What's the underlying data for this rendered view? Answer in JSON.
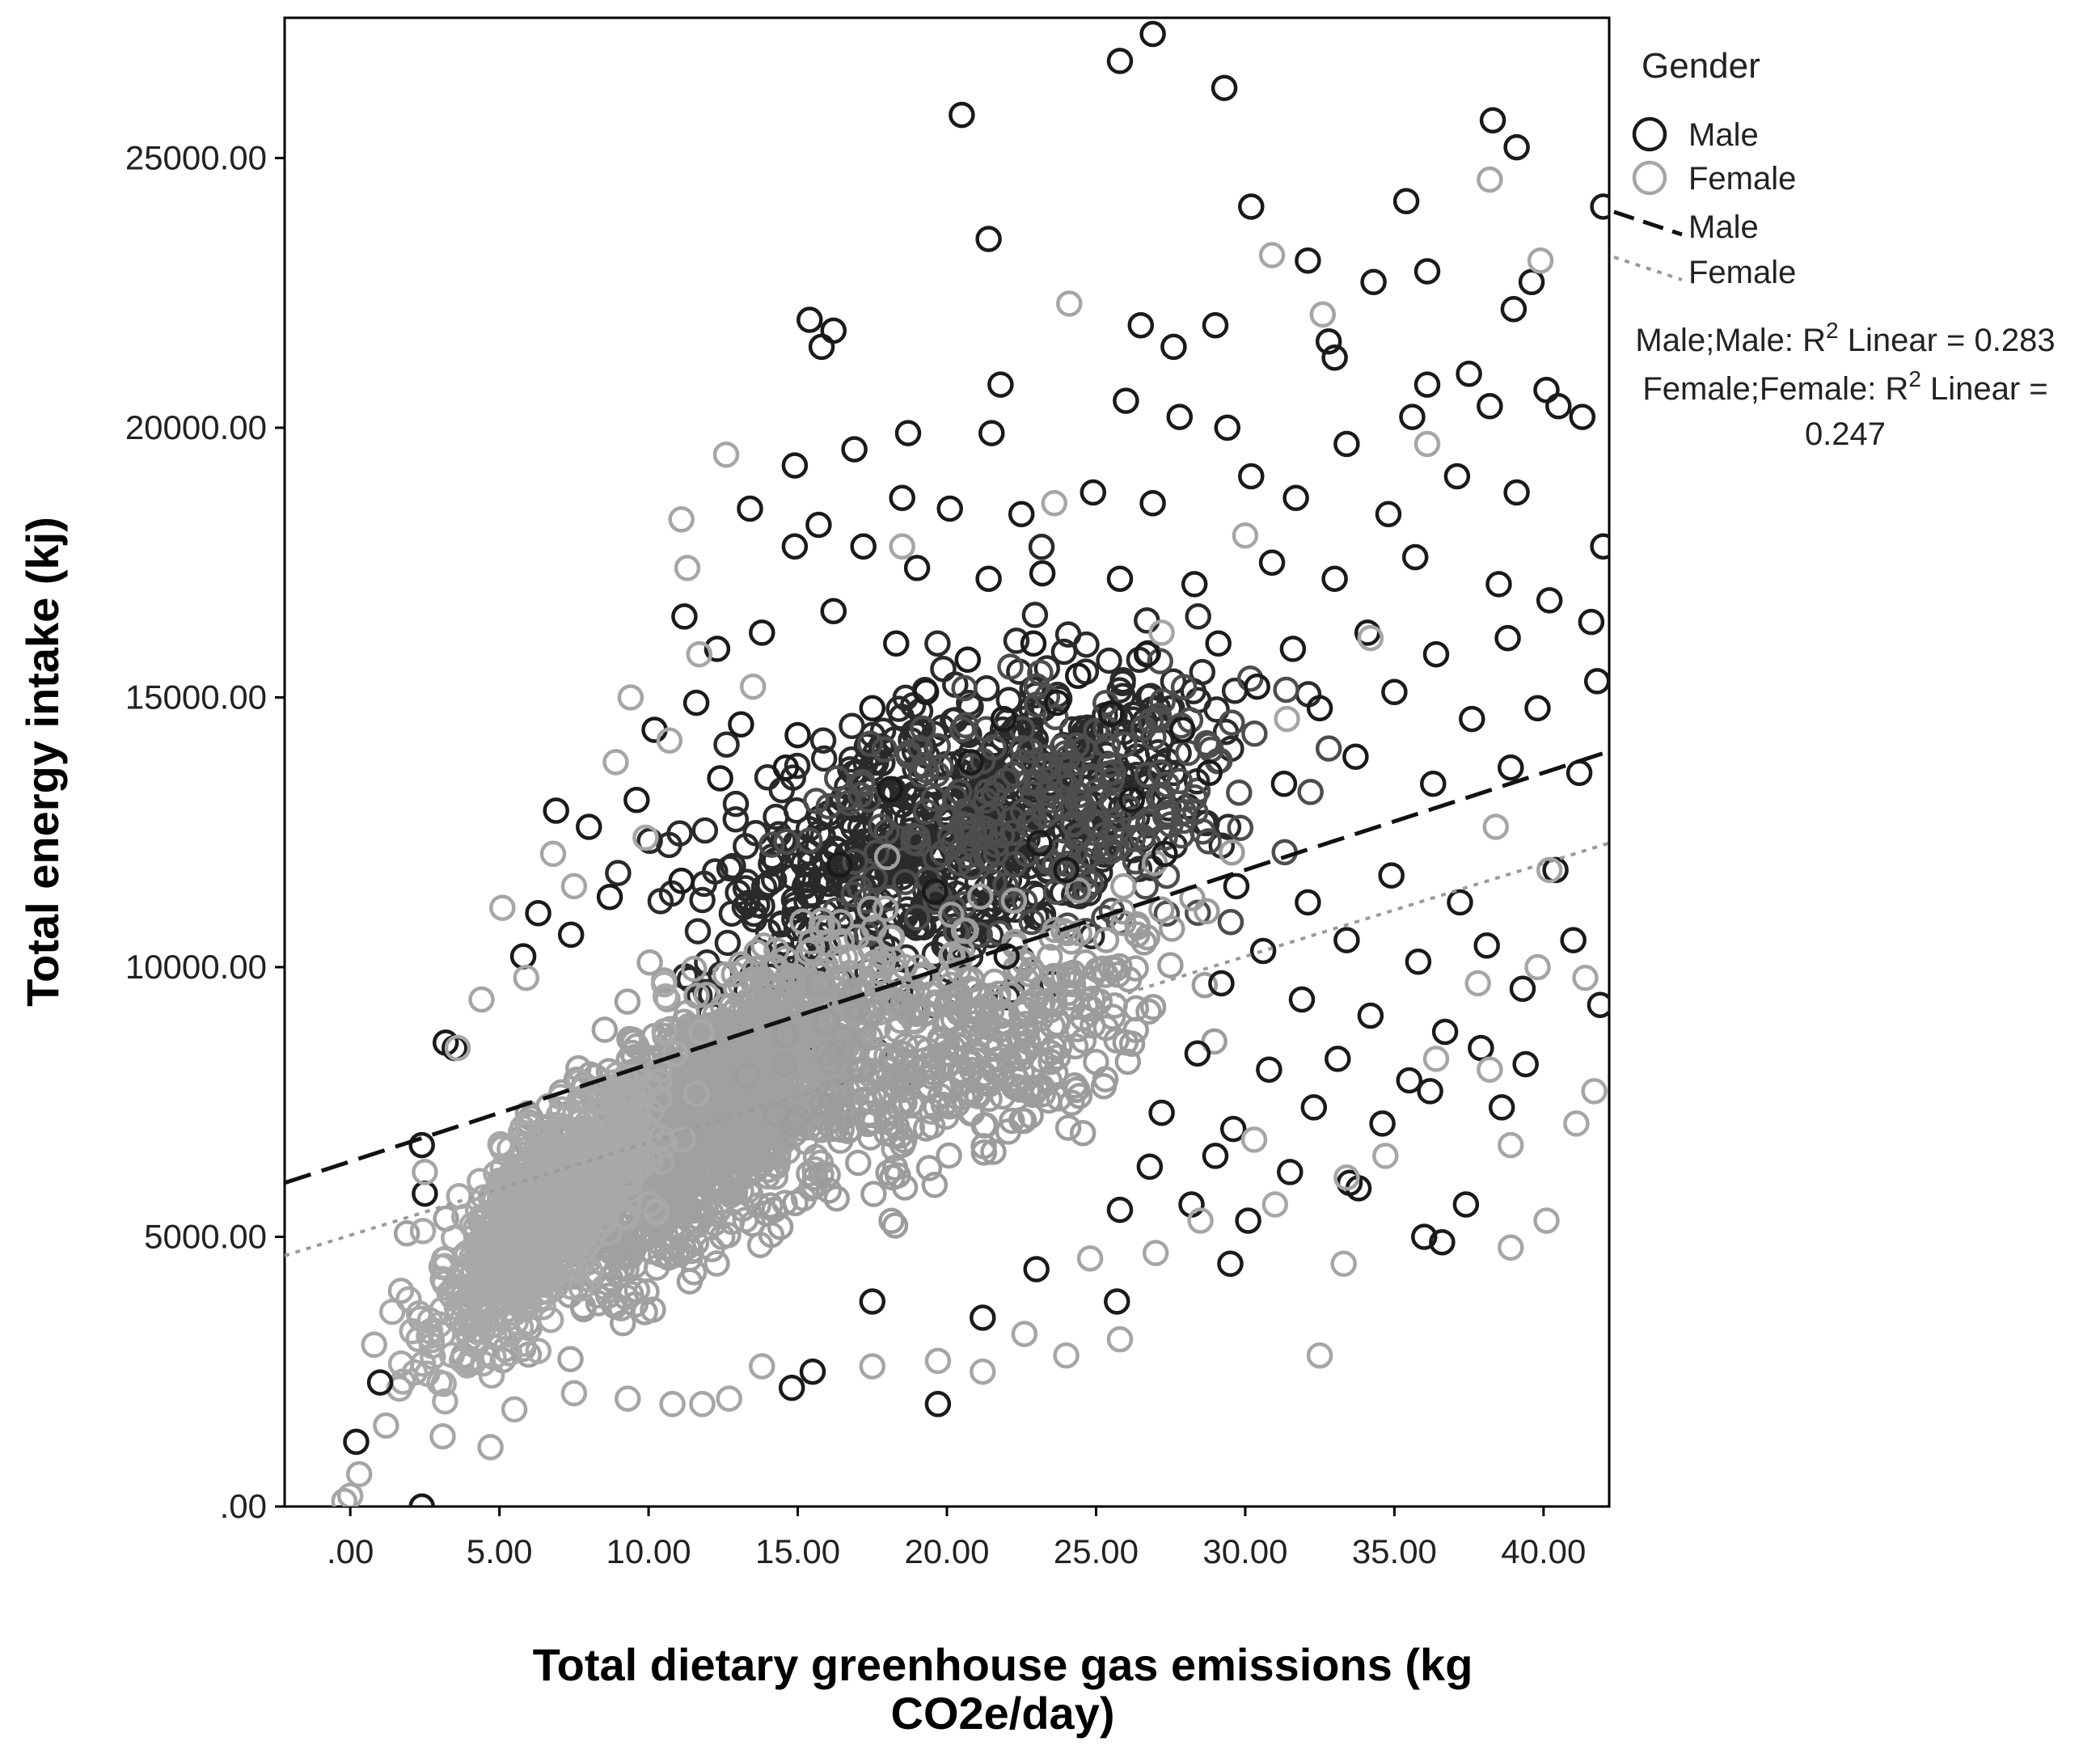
{
  "chart_data": {
    "type": "scatter",
    "title": "",
    "xlabel_line1": "Total dietary greenhouse gas emissions (kg",
    "xlabel_line2": "CO2e/day)",
    "ylabel": "Total energy intake (kj)",
    "xlim": [
      -2.2,
      42.2
    ],
    "ylim": [
      0,
      27600
    ],
    "x_ticks": [
      0,
      5,
      10,
      15,
      20,
      25,
      30,
      35,
      40
    ],
    "x_tick_labels": [
      ".00",
      "5.00",
      "10.00",
      "15.00",
      "20.00",
      "25.00",
      "30.00",
      "35.00",
      "40.00"
    ],
    "y_ticks": [
      0,
      5000,
      10000,
      15000,
      20000,
      25000
    ],
    "y_tick_labels": [
      ".00",
      "5000.00",
      "10000.00",
      "15000.00",
      "20000.00",
      "25000.00"
    ],
    "legend": {
      "title": "Gender",
      "position": "right",
      "entries": [
        {
          "label": "Male",
          "kind": "marker"
        },
        {
          "label": "Female",
          "kind": "marker"
        },
        {
          "label": "Male",
          "kind": "dashed-line"
        },
        {
          "label": "Female",
          "kind": "dotted-line"
        }
      ]
    },
    "fit_annotations": {
      "male_prefix": "Male;Male: R",
      "male_suffix": " Linear = 0.283",
      "female_prefix": "Female;Female: R",
      "female_suffix": " Linear =",
      "female_value": "0.247",
      "superscript": "2"
    },
    "series": [
      {
        "name": "Male",
        "color": "#1a1a1a",
        "fit": {
          "type": "linear",
          "x0": -2.2,
          "y0": 6000,
          "x1": 42.2,
          "y1": 14000,
          "r2": 0.283
        },
        "points": [
          [
            26.9,
            27300
          ],
          [
            25.8,
            26800
          ],
          [
            29.3,
            26300
          ],
          [
            20.5,
            25800
          ],
          [
            38.3,
            25700
          ],
          [
            39.1,
            25200
          ],
          [
            21.4,
            23500
          ],
          [
            35.4,
            24200
          ],
          [
            30.2,
            24100
          ],
          [
            42.0,
            24100
          ],
          [
            34.3,
            22700
          ],
          [
            36.1,
            22900
          ],
          [
            39.6,
            22700
          ],
          [
            39.0,
            22200
          ],
          [
            32.1,
            23100
          ],
          [
            15.4,
            22000
          ],
          [
            15.8,
            21500
          ],
          [
            16.2,
            21800
          ],
          [
            26.5,
            21900
          ],
          [
            27.6,
            21500
          ],
          [
            29.0,
            21900
          ],
          [
            32.8,
            21600
          ],
          [
            33.0,
            21300
          ],
          [
            37.5,
            21000
          ],
          [
            21.8,
            20800
          ],
          [
            40.1,
            20700
          ],
          [
            40.5,
            20400
          ],
          [
            41.3,
            20200
          ],
          [
            36.1,
            20800
          ],
          [
            35.6,
            20200
          ],
          [
            18.7,
            19900
          ],
          [
            21.5,
            19900
          ],
          [
            16.9,
            19600
          ],
          [
            14.9,
            19300
          ],
          [
            26.0,
            20500
          ],
          [
            27.8,
            20200
          ],
          [
            29.4,
            20000
          ],
          [
            33.4,
            19700
          ],
          [
            38.2,
            20400
          ],
          [
            13.4,
            18500
          ],
          [
            15.7,
            18200
          ],
          [
            18.5,
            18700
          ],
          [
            20.1,
            18500
          ],
          [
            22.5,
            18400
          ],
          [
            24.9,
            18800
          ],
          [
            26.9,
            18600
          ],
          [
            30.2,
            19100
          ],
          [
            31.7,
            18700
          ],
          [
            34.8,
            18400
          ],
          [
            37.1,
            19100
          ],
          [
            39.1,
            18800
          ],
          [
            42.0,
            17800
          ],
          [
            14.9,
            17800
          ],
          [
            17.2,
            17800
          ],
          [
            19.0,
            17400
          ],
          [
            21.4,
            17200
          ],
          [
            23.2,
            17300
          ],
          [
            25.8,
            17200
          ],
          [
            28.3,
            17100
          ],
          [
            30.9,
            17500
          ],
          [
            33.0,
            17200
          ],
          [
            35.7,
            17600
          ],
          [
            38.5,
            17100
          ],
          [
            40.2,
            16800
          ],
          [
            11.2,
            16500
          ],
          [
            12.3,
            15900
          ],
          [
            13.8,
            16200
          ],
          [
            16.2,
            16600
          ],
          [
            18.3,
            16000
          ],
          [
            20.7,
            15700
          ],
          [
            22.9,
            16000
          ],
          [
            24.4,
            15400
          ],
          [
            26.7,
            15800
          ],
          [
            29.1,
            16000
          ],
          [
            31.6,
            15900
          ],
          [
            34.1,
            16200
          ],
          [
            36.4,
            15800
          ],
          [
            38.8,
            16100
          ],
          [
            41.6,
            16400
          ],
          [
            10.2,
            14400
          ],
          [
            11.6,
            14900
          ],
          [
            13.1,
            14500
          ],
          [
            15.0,
            14300
          ],
          [
            17.5,
            14800
          ],
          [
            19.3,
            15100
          ],
          [
            21.9,
            14600
          ],
          [
            23.7,
            14900
          ],
          [
            25.5,
            14700
          ],
          [
            27.9,
            14400
          ],
          [
            30.4,
            15200
          ],
          [
            32.5,
            14800
          ],
          [
            35.0,
            15100
          ],
          [
            37.6,
            14600
          ],
          [
            39.8,
            14800
          ],
          [
            41.8,
            15300
          ],
          [
            8.0,
            12600
          ],
          [
            9.6,
            13100
          ],
          [
            6.9,
            12900
          ],
          [
            12.4,
            13500
          ],
          [
            14.6,
            13700
          ],
          [
            18.1,
            13300
          ],
          [
            20.8,
            13800
          ],
          [
            23.1,
            12300
          ],
          [
            26.2,
            13100
          ],
          [
            28.8,
            13600
          ],
          [
            31.3,
            13400
          ],
          [
            33.7,
            13900
          ],
          [
            36.3,
            13400
          ],
          [
            38.9,
            13700
          ],
          [
            41.2,
            13600
          ],
          [
            6.3,
            11000
          ],
          [
            8.7,
            11300
          ],
          [
            11.1,
            11600
          ],
          [
            16.4,
            11900
          ],
          [
            19.6,
            11400
          ],
          [
            24.0,
            11800
          ],
          [
            27.3,
            12100
          ],
          [
            29.7,
            11500
          ],
          [
            32.1,
            11200
          ],
          [
            34.9,
            11700
          ],
          [
            37.2,
            11200
          ],
          [
            40.4,
            11800
          ],
          [
            5.8,
            10200
          ],
          [
            7.4,
            10600
          ],
          [
            22.0,
            10200
          ],
          [
            30.6,
            10300
          ],
          [
            33.4,
            10500
          ],
          [
            35.8,
            10100
          ],
          [
            38.1,
            10400
          ],
          [
            41.0,
            10500
          ],
          [
            29.2,
            9700
          ],
          [
            31.9,
            9400
          ],
          [
            34.2,
            9100
          ],
          [
            36.7,
            8800
          ],
          [
            39.3,
            9600
          ],
          [
            41.9,
            9300
          ],
          [
            3.2,
            8600
          ],
          [
            3.5,
            8500
          ],
          [
            28.4,
            8400
          ],
          [
            30.8,
            8100
          ],
          [
            33.1,
            8300
          ],
          [
            35.5,
            7900
          ],
          [
            37.9,
            8500
          ],
          [
            39.4,
            8200
          ],
          [
            27.2,
            7300
          ],
          [
            29.6,
            7000
          ],
          [
            32.3,
            7400
          ],
          [
            34.6,
            7100
          ],
          [
            36.2,
            7700
          ],
          [
            38.6,
            7400
          ],
          [
            2.4,
            6700
          ],
          [
            26.8,
            6300
          ],
          [
            29.0,
            6500
          ],
          [
            31.5,
            6200
          ],
          [
            33.5,
            6000
          ],
          [
            2.5,
            5800
          ],
          [
            25.8,
            5500
          ],
          [
            28.2,
            5600
          ],
          [
            30.1,
            5300
          ],
          [
            33.8,
            5900
          ],
          [
            37.4,
            5600
          ],
          [
            36.0,
            5000
          ],
          [
            36.6,
            4900
          ],
          [
            25.7,
            3800
          ],
          [
            29.5,
            4500
          ],
          [
            14.8,
            2200
          ],
          [
            19.7,
            1900
          ],
          [
            15.5,
            2500
          ],
          [
            0.2,
            1200
          ],
          [
            2.4,
            0
          ],
          [
            1.0,
            2300
          ],
          [
            17.5,
            3800
          ],
          [
            21.2,
            3500
          ],
          [
            23.0,
            4400
          ]
        ]
      },
      {
        "name": "Female",
        "color": "#a6a6a6",
        "fit": {
          "type": "linear",
          "x0": -2.2,
          "y0": 4650,
          "x1": 42.2,
          "y1": 12300,
          "r2": 0.247
        },
        "points": [
          [
            38.2,
            24600
          ],
          [
            30.9,
            23200
          ],
          [
            39.9,
            23100
          ],
          [
            24.1,
            22300
          ],
          [
            32.6,
            22100
          ],
          [
            12.6,
            19500
          ],
          [
            36.1,
            19700
          ],
          [
            11.1,
            18300
          ],
          [
            23.6,
            18600
          ],
          [
            30.0,
            18000
          ],
          [
            11.3,
            17400
          ],
          [
            18.5,
            17800
          ],
          [
            9.4,
            15000
          ],
          [
            11.7,
            15800
          ],
          [
            13.5,
            15200
          ],
          [
            27.2,
            16200
          ],
          [
            34.2,
            16100
          ],
          [
            8.9,
            13800
          ],
          [
            10.7,
            14200
          ],
          [
            31.4,
            14600
          ],
          [
            6.8,
            12100
          ],
          [
            9.9,
            12400
          ],
          [
            38.4,
            12600
          ],
          [
            5.1,
            11100
          ],
          [
            7.5,
            11500
          ],
          [
            40.2,
            11800
          ],
          [
            4.4,
            9400
          ],
          [
            5.9,
            9800
          ],
          [
            37.8,
            9700
          ],
          [
            39.8,
            10000
          ],
          [
            41.4,
            9800
          ],
          [
            3.6,
            8500
          ],
          [
            36.4,
            8300
          ],
          [
            38.2,
            8100
          ],
          [
            41.7,
            7700
          ],
          [
            41.1,
            7100
          ],
          [
            2.5,
            6200
          ],
          [
            38.9,
            6700
          ],
          [
            33.4,
            6100
          ],
          [
            31.0,
            5600
          ],
          [
            1.7,
            4000
          ],
          [
            24.8,
            4600
          ],
          [
            33.3,
            4500
          ],
          [
            38.9,
            4800
          ],
          [
            40.1,
            5300
          ],
          [
            0.8,
            3000
          ],
          [
            4.7,
            1100
          ],
          [
            7.5,
            2100
          ],
          [
            9.3,
            2000
          ],
          [
            10.8,
            1900
          ],
          [
            11.8,
            1900
          ],
          [
            12.7,
            2000
          ],
          [
            17.5,
            2600
          ],
          [
            19.7,
            2700
          ],
          [
            21.2,
            2500
          ],
          [
            24.0,
            2800
          ],
          [
            25.8,
            3100
          ],
          [
            32.5,
            2800
          ],
          [
            0.0,
            200
          ],
          [
            0.3,
            600
          ],
          [
            -0.2,
            100
          ],
          [
            1.2,
            1500
          ],
          [
            3.1,
            1300
          ],
          [
            5.5,
            1800
          ],
          [
            13.8,
            2600
          ],
          [
            22.6,
            3200
          ],
          [
            27.0,
            4700
          ],
          [
            28.5,
            5300
          ],
          [
            30.3,
            6800
          ],
          [
            34.7,
            6500
          ]
        ]
      }
    ],
    "dense_clouds": [
      {
        "name": "Male",
        "color": "#2a2a2a",
        "count": 650,
        "x_center": 20.5,
        "x_spread": 7.0,
        "y_slope": 220,
        "y_intercept": 8000,
        "y_spread": 2300
      },
      {
        "name": "Male",
        "color": "#4d4d4d",
        "count": 250,
        "x_center": 23.5,
        "x_spread": 6.0,
        "y_slope": 80,
        "y_intercept": 11000,
        "y_spread": 1800
      },
      {
        "name": "Female",
        "color": "#a0a0a0",
        "count": 1700,
        "x_center": 12.0,
        "x_spread": 5.5,
        "y_slope": 330,
        "y_intercept": 3300,
        "y_spread": 1900
      },
      {
        "name": "Female",
        "color": "#a8a8a8",
        "count": 650,
        "x_center": 6.5,
        "x_spread": 3.2,
        "y_slope": 500,
        "y_intercept": 2200,
        "y_spread": 1500
      },
      {
        "name": "Female",
        "color": "#9c9c9c",
        "count": 350,
        "x_center": 21.0,
        "x_spread": 5.5,
        "y_slope": 250,
        "y_intercept": 3300,
        "y_spread": 1700
      }
    ]
  }
}
